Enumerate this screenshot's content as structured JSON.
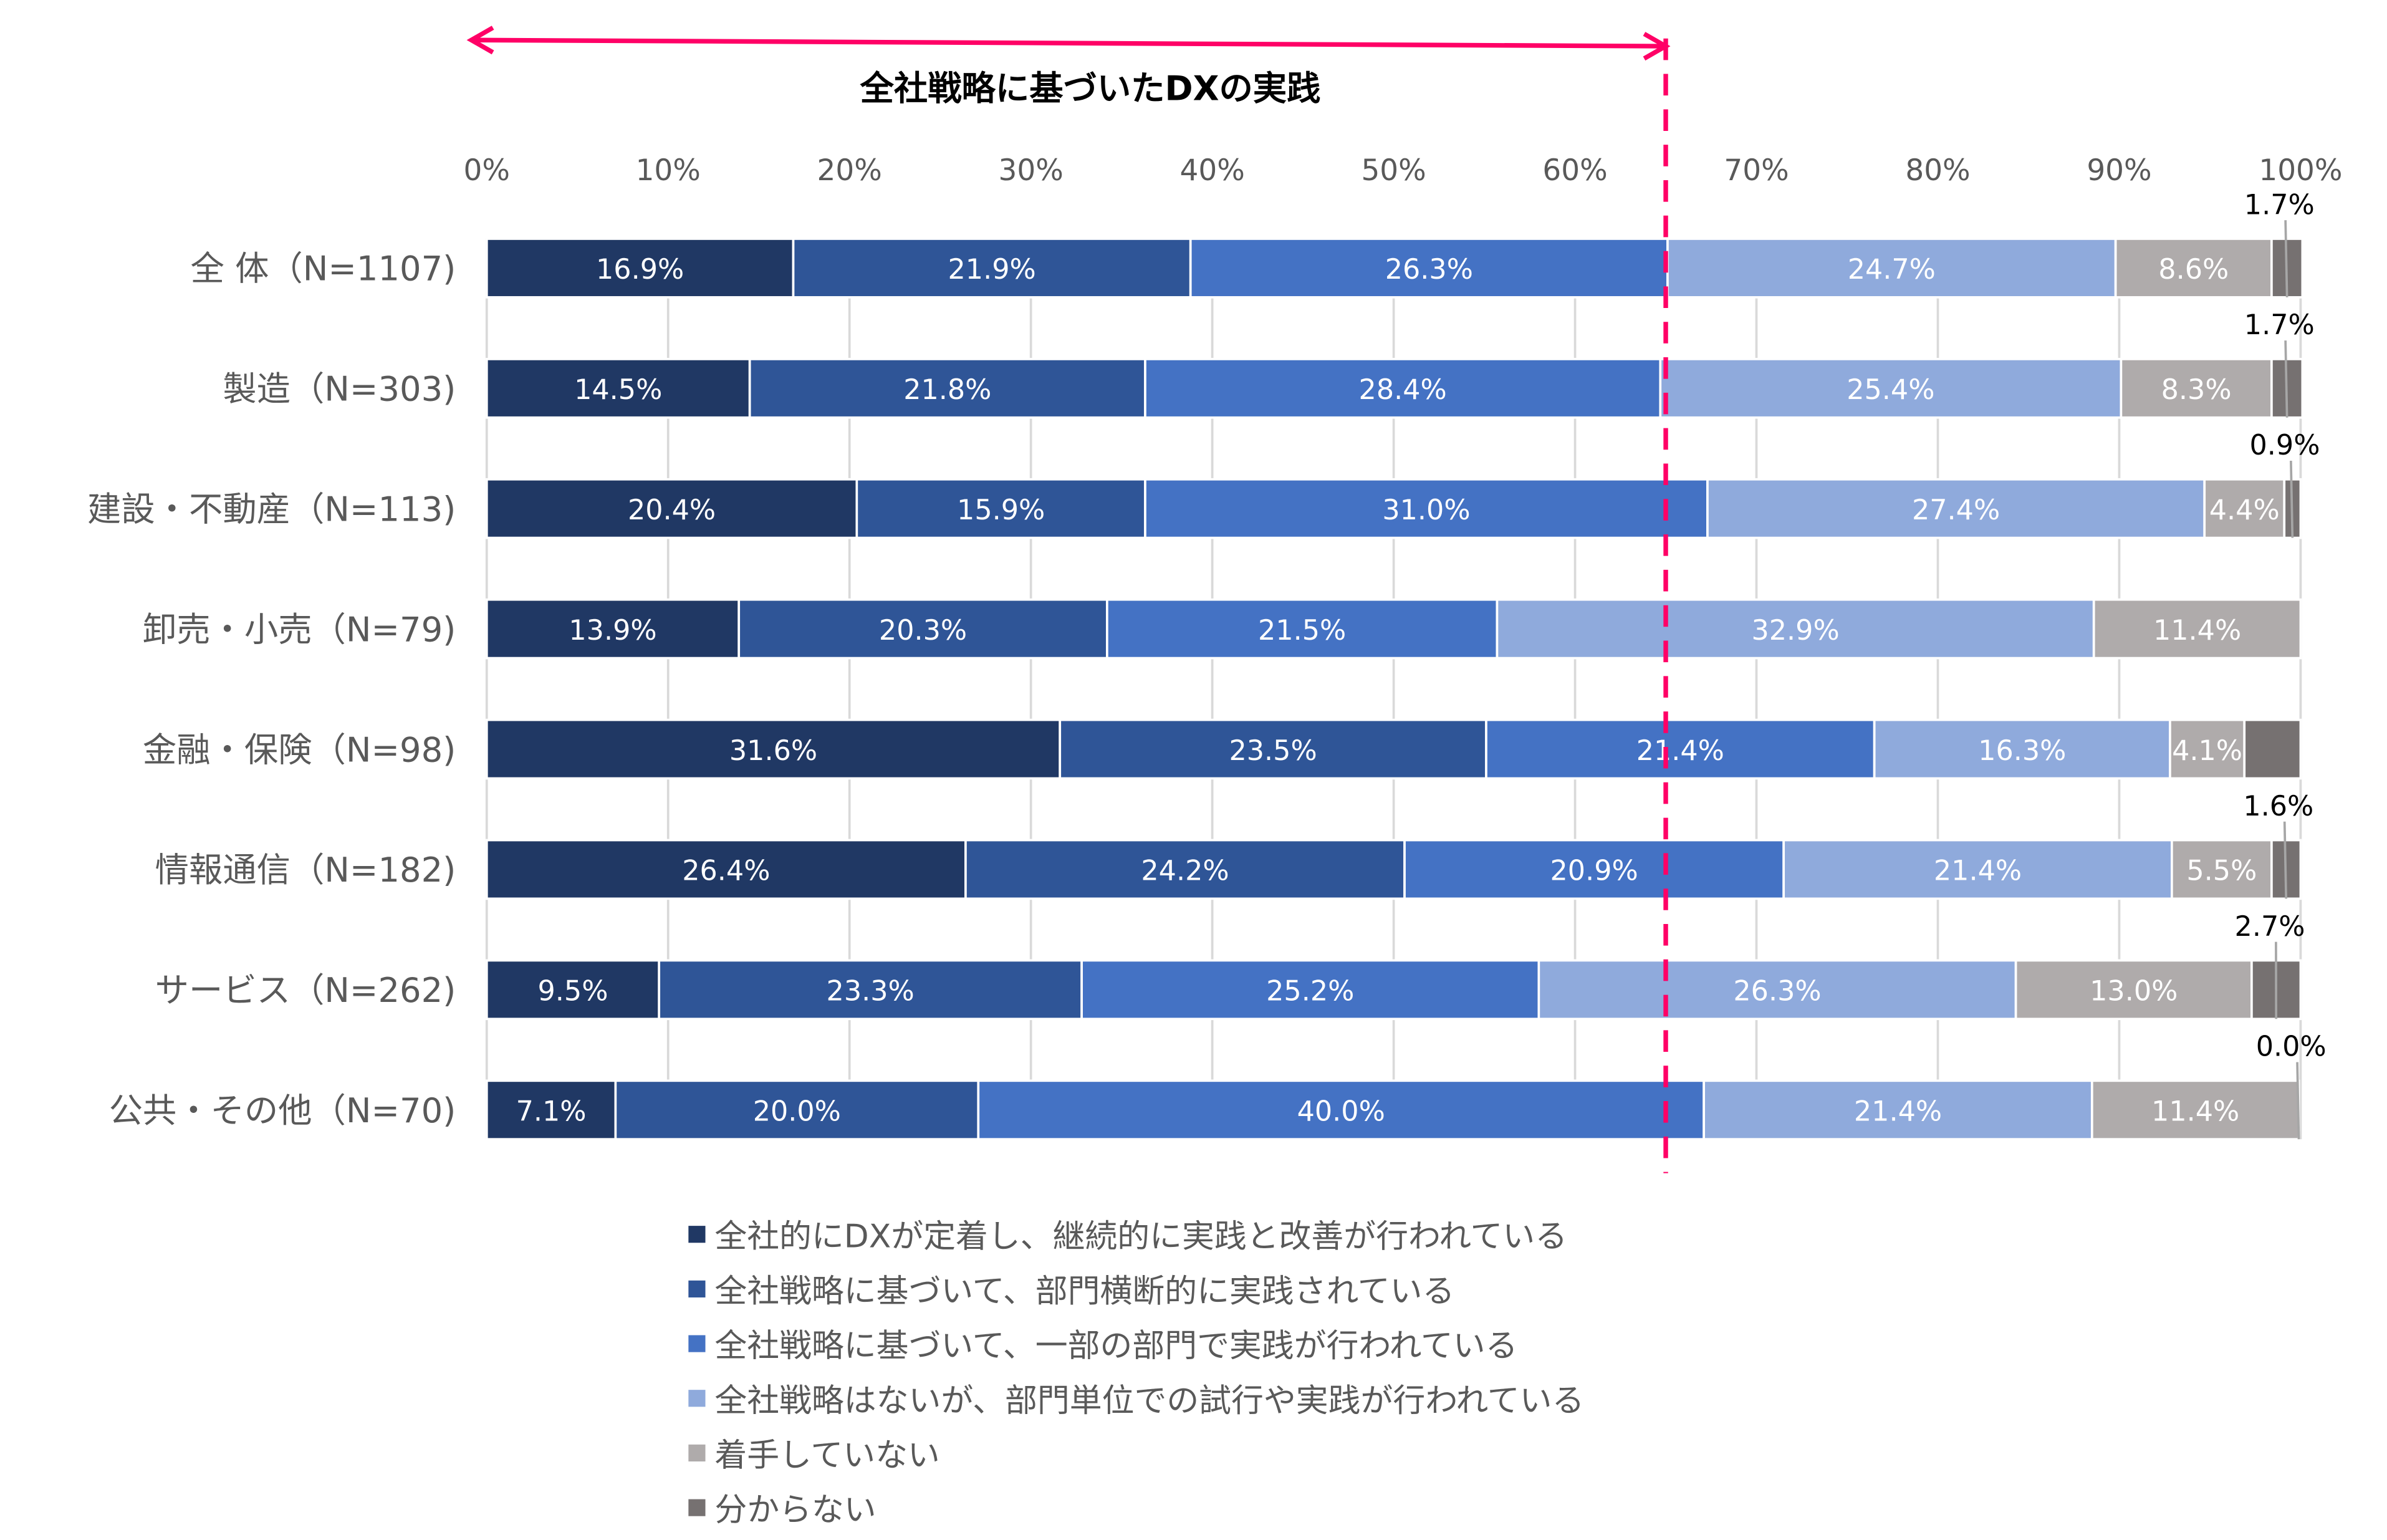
{
  "chart_data": {
    "type": "bar",
    "orientation": "horizontal",
    "stacked": true,
    "title": "全社戦略に基づいたDXの実践",
    "annotation": {
      "label": "全社戦略に基づいたDXの実践",
      "from": 0,
      "to": 65,
      "color": "#FF0066"
    },
    "xlim": [
      0,
      100
    ],
    "xticks": [
      "0%",
      "10%",
      "20%",
      "30%",
      "40%",
      "50%",
      "60%",
      "70%",
      "80%",
      "90%",
      "100%"
    ],
    "grid": true,
    "legend_position": "bottom",
    "categories": [
      "全 体（N=1107)",
      "製造（N=303)",
      "建設・不動産（N=113)",
      "卸売・小売（N=79)",
      "金融・保険（N=98)",
      "情報通信（N=182)",
      "サービス（N=262)",
      "公共・その他（N=70)"
    ],
    "series": [
      {
        "name": "全社的にDXが定着し、継続的に実践と改善が行われている",
        "color": "#203864",
        "values": [
          16.9,
          14.5,
          20.4,
          13.9,
          31.6,
          26.4,
          9.5,
          7.1
        ]
      },
      {
        "name": "全社戦略に基づいて、部門横断的に実践されている",
        "color": "#2F5597",
        "values": [
          21.9,
          21.8,
          15.9,
          20.3,
          23.5,
          24.2,
          23.3,
          20.0
        ]
      },
      {
        "name": "全社戦略に基づいて、一部の部門で実践が行われている",
        "color": "#4472C4",
        "values": [
          26.3,
          28.4,
          31.0,
          21.5,
          21.4,
          20.9,
          25.2,
          40.0
        ]
      },
      {
        "name": "全社戦略はないが、部門単位での試行や実践が行われている",
        "color": "#8FAADC",
        "values": [
          24.7,
          25.4,
          27.4,
          32.9,
          16.3,
          21.4,
          26.3,
          21.4
        ]
      },
      {
        "name": "着手していない",
        "color": "#AFABAB",
        "values": [
          8.6,
          8.3,
          4.4,
          11.4,
          4.1,
          5.5,
          13.0,
          11.4
        ]
      },
      {
        "name": "分からない",
        "color": "#767171",
        "values": [
          1.7,
          1.7,
          0.9,
          0,
          3.1,
          1.6,
          2.7,
          0.0
        ],
        "labels_shown": [
          true,
          true,
          true,
          false,
          false,
          true,
          true,
          true
        ]
      }
    ]
  }
}
